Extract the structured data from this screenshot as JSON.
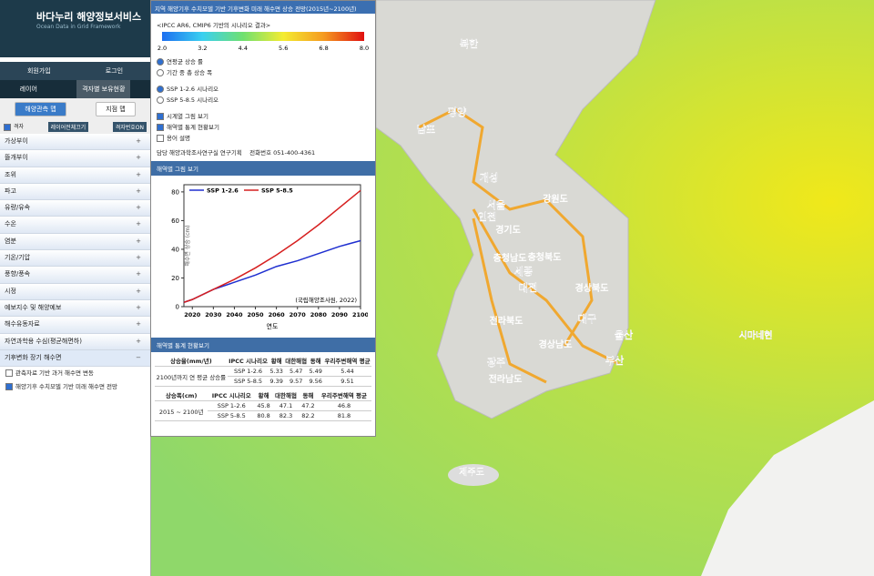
{
  "header": {
    "title": "바다누리 해양정보서비스",
    "subtitle": "Ocean Data in Grid Framework"
  },
  "nav": {
    "signup": "회원가입",
    "login": "로그인",
    "tabs": [
      "레이어",
      "격자별 보유현황"
    ],
    "map_buttons": [
      "해양관측 맵",
      "지점 맵"
    ],
    "grid_toggle": "격자",
    "layers_off": "레이어전체끄기",
    "grid_number": "격자번호ON"
  },
  "menu": [
    "가상부이",
    "뜰개부이",
    "조위",
    "파고",
    "유량/유속",
    "수온",
    "염분",
    "기온/기압",
    "풍향/풍속",
    "시정",
    "예보지수 및 해양예보",
    "해수유동자료",
    "자연과학용 수심(평균해면하)",
    "기후변화 장기 해수면"
  ],
  "submenu": [
    "관측자료 기반 과거 해수면 변동",
    "해양기후 수치모델 기반 미래 해수면 전망"
  ],
  "panel": {
    "title": "지역 해양기후 수치모델 기반 기후변화 미래 해수면 상승 전망(2015년~2100년)",
    "colorbar": {
      "title": "<IPCC AR6, CMIP6 기반의 시나리오 결과>",
      "ticks": [
        {
          "value": 2,
          "label": "2.0"
        },
        {
          "value": 3.2,
          "label": "3.2"
        },
        {
          "value": 4.4,
          "label": "4.4"
        },
        {
          "value": 5.6,
          "label": "5.6"
        },
        {
          "value": 6.8,
          "label": "6.8"
        },
        {
          "value": 8,
          "label": "8.0"
        }
      ]
    },
    "mode_options": [
      "연평균 상승 률",
      "기간 중 총 상승 폭"
    ],
    "scenario_options": [
      "SSP 1-2.6 시나리오",
      "SSP 5-8.5 시나리오"
    ],
    "view_options": [
      "시계열 그림 보기",
      "해역별 통계 현황보기",
      "용어 설명"
    ],
    "contact_label": "담당",
    "contact": "해양과학조사연구실 연구기획",
    "phone_label": "전화번호",
    "phone": "051-400-4361",
    "chart_section": "해역별 그림 보기",
    "stats_section": "해역별 통계 현황보기"
  },
  "chart_data": {
    "type": "line",
    "x_label": "연도",
    "y_label": "해수면 상승 (cm)",
    "annotation": "(국립해양조사원, 2022)",
    "x": [
      2016,
      2020,
      2030,
      2040,
      2050,
      2060,
      2070,
      2080,
      2090,
      2100
    ],
    "series": [
      {
        "name": "SSP 1-2.6",
        "color": "#1f2fd0",
        "values": [
          3,
          5,
          12,
          17,
          22,
          28,
          32,
          37,
          42,
          46
        ]
      },
      {
        "name": "SSP 5-8.5",
        "color": "#d61f1f",
        "values": [
          3,
          5,
          12,
          19,
          27,
          36,
          46,
          57,
          69,
          81
        ]
      }
    ],
    "xlim": [
      2016,
      2100
    ],
    "xticks": [
      2020,
      2030,
      2040,
      2050,
      2060,
      2070,
      2080,
      2090,
      2100
    ],
    "ylim": [
      0,
      85
    ],
    "yticks": [
      0,
      20,
      40,
      60,
      80
    ]
  },
  "tables": [
    {
      "headers": [
        "상승율(mm/년)",
        "IPCC 시나리오",
        "황해",
        "대한해협",
        "동해",
        "우리주변해역 평균"
      ],
      "period": "2100년까지 연 평균 상승률",
      "rows": [
        [
          "SSP 1-2.6",
          "5.33",
          "5.47",
          "5.49",
          "5.44"
        ],
        [
          "SSP 5-8.5",
          "9.39",
          "9.57",
          "9.56",
          "9.51"
        ]
      ]
    },
    {
      "headers": [
        "상승폭(cm)",
        "IPCC 시나리오",
        "황해",
        "대한해협",
        "동해",
        "우리주변해역 평균"
      ],
      "period": "2015 ~ 2100년",
      "rows": [
        [
          "SSP 1-2.6",
          "45.8",
          "47.1",
          "47.2",
          "46.8"
        ],
        [
          "SSP 5-8.5",
          "80.8",
          "82.3",
          "82.2",
          "81.8"
        ]
      ]
    }
  ],
  "map_labels": [
    "북한",
    "남포",
    "평양",
    "개성",
    "서울",
    "인천",
    "경기도",
    "강원도",
    "충청북도",
    "충청남도",
    "세종",
    "대전",
    "경상북도",
    "대구",
    "울산",
    "부산",
    "전라북도",
    "광주",
    "전라남도",
    "경상남도",
    "제주도",
    "시마네현"
  ]
}
